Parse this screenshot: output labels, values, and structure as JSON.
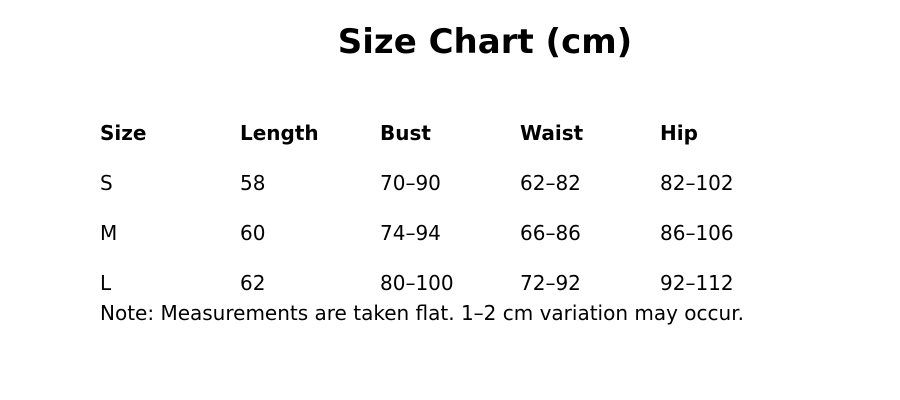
{
  "title": "Size Chart (cm)",
  "table": {
    "headers": [
      "Size",
      "Length",
      "Bust",
      "Waist",
      "Hip"
    ],
    "rows": [
      [
        "S",
        "58",
        "70–90",
        "62–82",
        "82–102"
      ],
      [
        "M",
        "60",
        "74–94",
        "66–86",
        "86–106"
      ],
      [
        "L",
        "62",
        "80–100",
        "72–92",
        "92–112"
      ]
    ]
  },
  "note": "Note: Measurements are taken flat. 1–2 cm variation may occur."
}
